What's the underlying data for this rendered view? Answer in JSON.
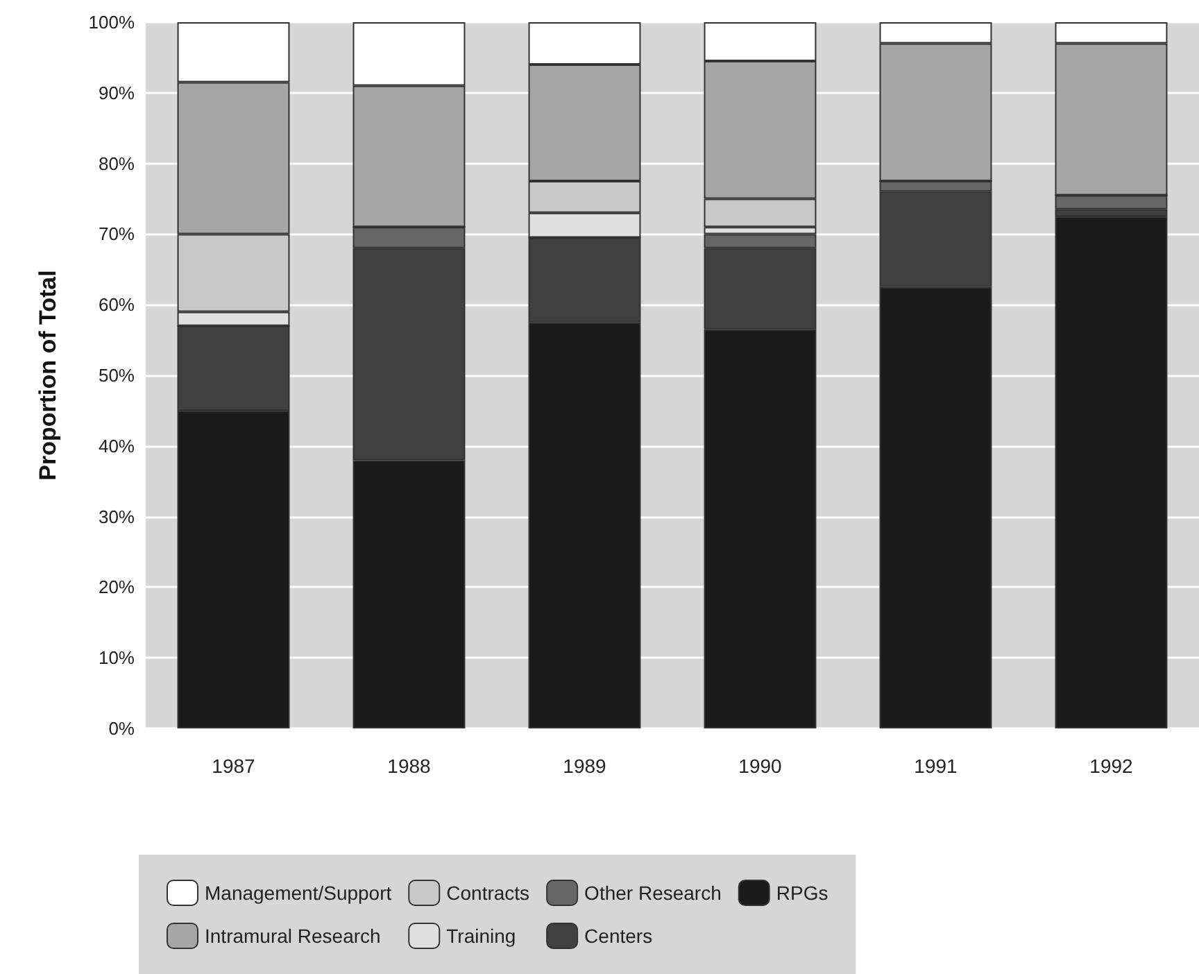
{
  "chart_data": {
    "type": "bar",
    "ylabel": "Proportion of Total",
    "categories": [
      "1987",
      "1988",
      "1989",
      "1990",
      "1991",
      "1992"
    ],
    "stacked": true,
    "series": [
      {
        "name": "RPGs",
        "color": "#1a1a1a",
        "values": [
          45,
          38,
          57.5,
          56.5,
          62.5,
          72.5
        ]
      },
      {
        "name": "Centers",
        "color": "#404040",
        "values": [
          12,
          30,
          12,
          11.5,
          13.5,
          1
        ]
      },
      {
        "name": "Other Research",
        "color": "#666666",
        "values": [
          0,
          3,
          0,
          2,
          1.5,
          2
        ]
      },
      {
        "name": "Training",
        "color": "#e0e0e0",
        "values": [
          2,
          0,
          3.5,
          1,
          0,
          0
        ]
      },
      {
        "name": "Contracts",
        "color": "#c8c8c8",
        "values": [
          11,
          0,
          4.5,
          4,
          0,
          0
        ]
      },
      {
        "name": "Intramural Research",
        "color": "#a6a6a6",
        "values": [
          21.5,
          20,
          16.5,
          19.5,
          19.5,
          21.5
        ]
      },
      {
        "name": "Management/Support",
        "color": "#ffffff",
        "values": [
          8.5,
          9,
          6,
          5.5,
          3,
          3
        ]
      }
    ],
    "ylim": [
      0,
      100
    ],
    "yticks": [
      {
        "value": 0,
        "label": "0%"
      },
      {
        "value": 10,
        "label": "10%"
      },
      {
        "value": 20,
        "label": "20%"
      },
      {
        "value": 30,
        "label": "30%"
      },
      {
        "value": 40,
        "label": "40%"
      },
      {
        "value": 50,
        "label": "50%"
      },
      {
        "value": 60,
        "label": "60%"
      },
      {
        "value": 70,
        "label": "70%"
      },
      {
        "value": 80,
        "label": "80%"
      },
      {
        "value": 90,
        "label": "90%"
      },
      {
        "value": 100,
        "label": "100%"
      }
    ],
    "grid": "y",
    "legend": "bottom"
  }
}
